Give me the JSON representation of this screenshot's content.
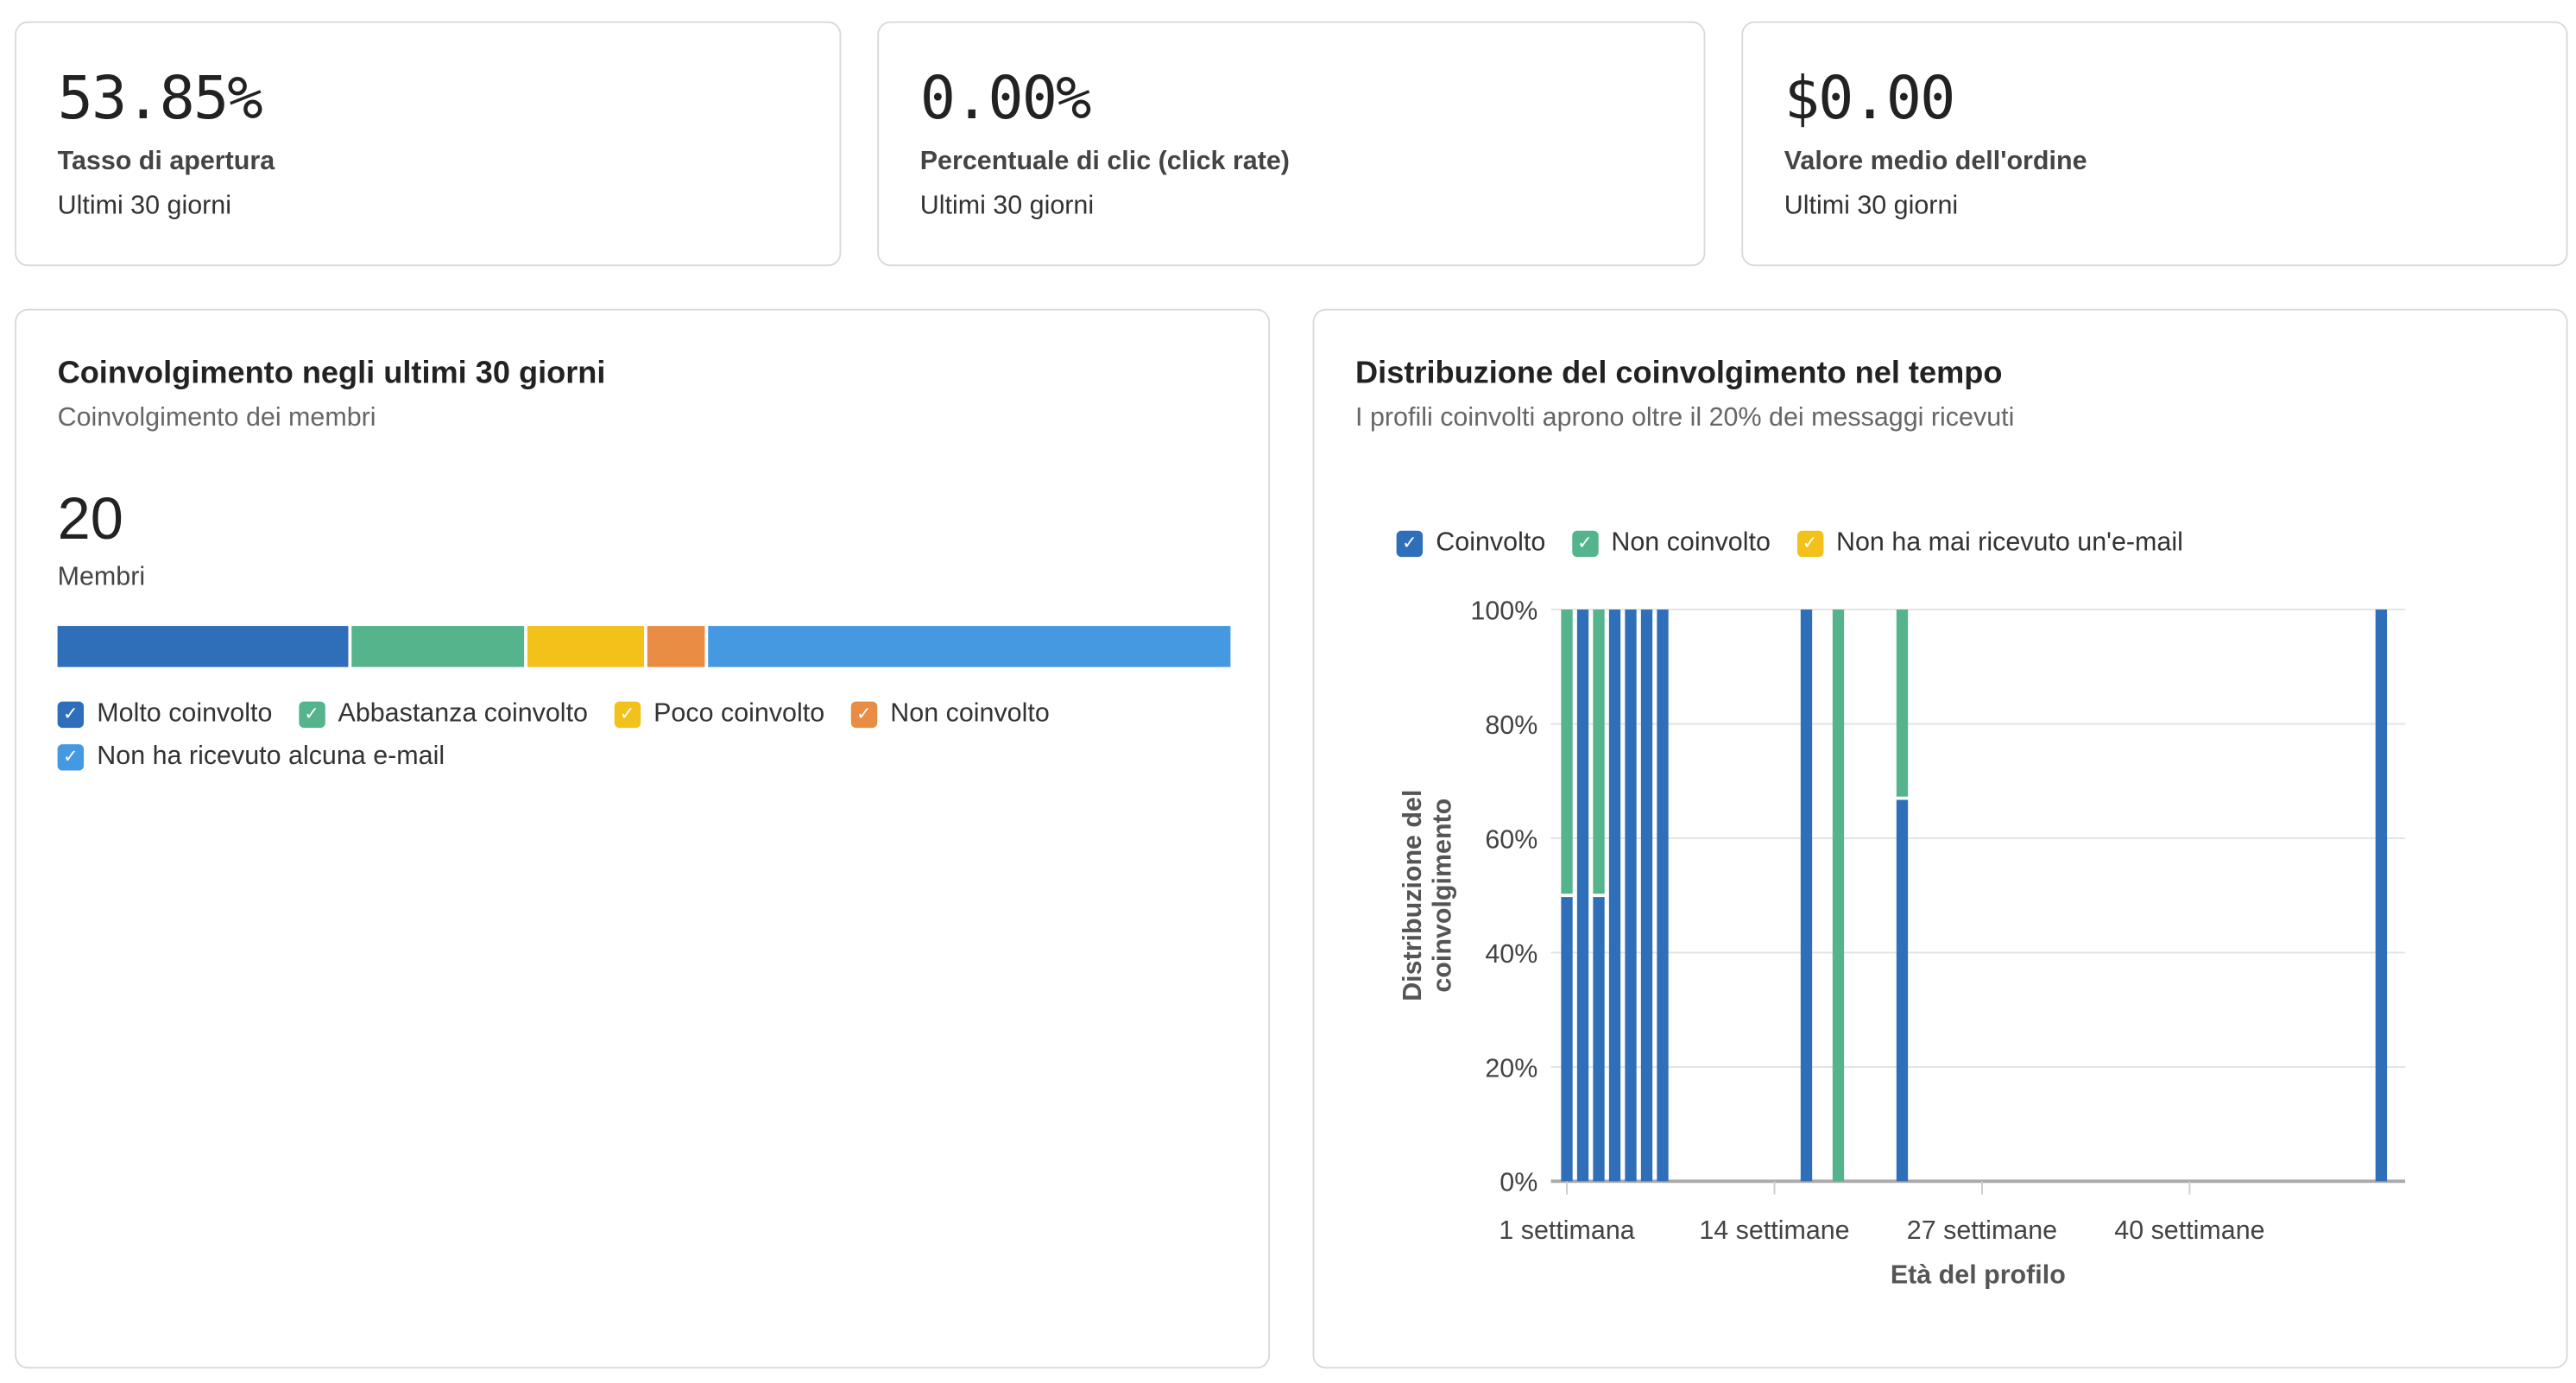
{
  "kpis": [
    {
      "value": "53.85%",
      "label": "Tasso di apertura",
      "period": "Ultimi 30 giorni"
    },
    {
      "value": "0.00%",
      "label": "Percentuale di clic (click rate)",
      "period": "Ultimi 30 giorni"
    },
    {
      "value": "$0.00",
      "label": "Valore medio dell'ordine",
      "period": "Ultimi 30 giorni"
    }
  ],
  "engagement": {
    "title": "Coinvolgimento negli ultimi 30 giorni",
    "subtitle": "Coinvolgimento dei membri",
    "count": "20",
    "count_label": "Membri",
    "segments": [
      {
        "label": "Molto coinvolto",
        "value": 5,
        "color": "#2f6fba",
        "checked": true
      },
      {
        "label": "Abbastanza coinvolto",
        "value": 3,
        "color": "#55b48c",
        "checked": true
      },
      {
        "label": "Poco coinvolto",
        "value": 2,
        "color": "#f2c21b",
        "checked": true
      },
      {
        "label": "Non coinvolto",
        "value": 1,
        "color": "#e98d45",
        "checked": true
      },
      {
        "label": "Non ha ricevuto alcuna e-mail",
        "value": 9,
        "color": "#4599e0",
        "checked": true
      }
    ]
  },
  "distribution": {
    "title": "Distribuzione del coinvolgimento nel tempo",
    "subtitle": "I profili coinvolti aprono oltre il 20% dei messaggi ricevuti"
  },
  "chart_data": {
    "type": "bar",
    "stacked": true,
    "xlabel": "Età del profilo",
    "ylabel": "Distribuzione del coinvolgimento",
    "ylim": [
      0,
      100
    ],
    "yticks": [
      "0%",
      "20%",
      "40%",
      "60%",
      "80%",
      "100%"
    ],
    "xticks": [
      {
        "week": 1,
        "label": "1 settimana"
      },
      {
        "week": 14,
        "label": "14 settimane"
      },
      {
        "week": 27,
        "label": "27 settimane"
      },
      {
        "week": 40,
        "label": "40 settimane"
      }
    ],
    "xlim": [
      0,
      53.5
    ],
    "grid": true,
    "legend_placement": "top-left",
    "series": [
      {
        "name": "Coinvolto",
        "color": "#2f6fba",
        "checked": true
      },
      {
        "name": "Non coinvolto",
        "color": "#55b48c",
        "checked": true
      },
      {
        "name": "Non ha mai ricevuto un'e-mail",
        "color": "#f2c21b",
        "checked": true
      }
    ],
    "points": [
      {
        "week": 1,
        "values": [
          50,
          50,
          0
        ]
      },
      {
        "week": 2,
        "values": [
          100,
          0,
          0
        ]
      },
      {
        "week": 3,
        "values": [
          50,
          50,
          0
        ]
      },
      {
        "week": 4,
        "values": [
          100,
          0,
          0
        ]
      },
      {
        "week": 5,
        "values": [
          100,
          0,
          0
        ]
      },
      {
        "week": 6,
        "values": [
          100,
          0,
          0
        ]
      },
      {
        "week": 7,
        "values": [
          100,
          0,
          0
        ]
      },
      {
        "week": 16,
        "values": [
          100,
          0,
          0
        ]
      },
      {
        "week": 18,
        "values": [
          0,
          100,
          0
        ]
      },
      {
        "week": 22,
        "values": [
          67,
          33,
          0
        ]
      },
      {
        "week": 52,
        "values": [
          100,
          0,
          0
        ]
      }
    ]
  }
}
